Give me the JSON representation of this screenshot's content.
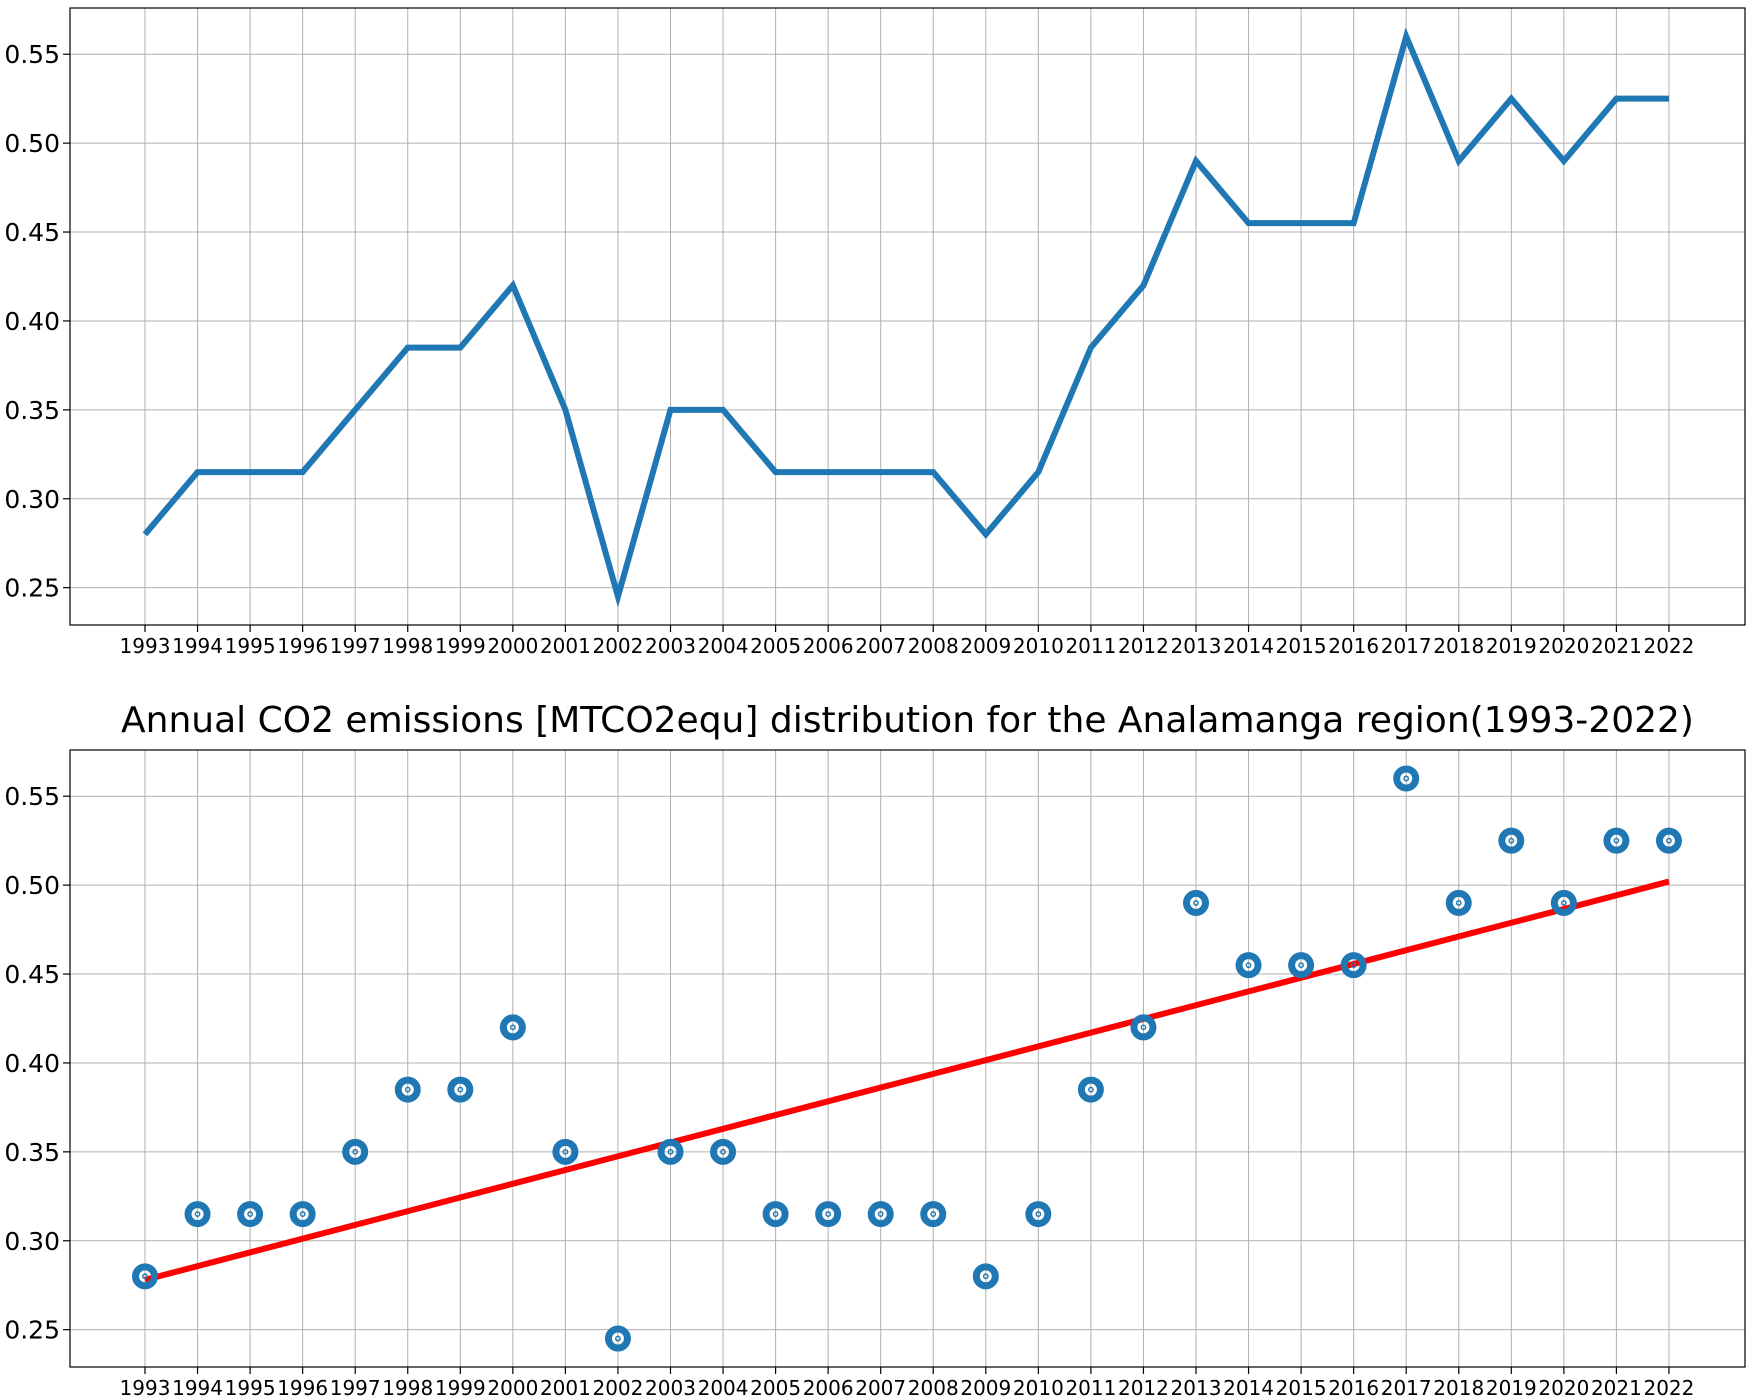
{
  "chart_data": [
    {
      "type": "line",
      "title": "",
      "xlabel": "",
      "ylabel": "",
      "grid": true,
      "x": [
        "1993",
        "1994",
        "1995",
        "1996",
        "1997",
        "1998",
        "1999",
        "2000",
        "2001",
        "2002",
        "2003",
        "2004",
        "2005",
        "2006",
        "2007",
        "2008",
        "2009",
        "2010",
        "2011",
        "2012",
        "2013",
        "2014",
        "2015",
        "2016",
        "2017",
        "2018",
        "2019",
        "2020",
        "2021",
        "2022"
      ],
      "y_ticks": [
        "0.25",
        "0.30",
        "0.35",
        "0.40",
        "0.45",
        "0.50",
        "0.55"
      ],
      "ylim": [
        0.229,
        0.576
      ],
      "series": [
        {
          "values": [
            0.28,
            0.315,
            0.315,
            0.315,
            0.35,
            0.385,
            0.385,
            0.42,
            0.35,
            0.245,
            0.35,
            0.35,
            0.315,
            0.315,
            0.315,
            0.315,
            0.28,
            0.315,
            0.385,
            0.42,
            0.49,
            0.455,
            0.455,
            0.455,
            0.56,
            0.49,
            0.525,
            0.49,
            0.525,
            0.525
          ],
          "color": "#1f77b4"
        }
      ]
    },
    {
      "type": "scatter",
      "title": "Annual CO2 emissions [MTCO2equ] distribution for the Analamanga region(1993-2022)",
      "xlabel": "",
      "ylabel": "",
      "grid": true,
      "x": [
        "1993",
        "1994",
        "1995",
        "1996",
        "1997",
        "1998",
        "1999",
        "2000",
        "2001",
        "2002",
        "2003",
        "2004",
        "2005",
        "2006",
        "2007",
        "2008",
        "2009",
        "2010",
        "2011",
        "2012",
        "2013",
        "2014",
        "2015",
        "2016",
        "2017",
        "2018",
        "2019",
        "2020",
        "2021",
        "2022"
      ],
      "y_ticks": [
        "0.25",
        "0.30",
        "0.35",
        "0.40",
        "0.45",
        "0.50",
        "0.55"
      ],
      "ylim": [
        0.229,
        0.576
      ],
      "series": [
        {
          "values": [
            0.28,
            0.315,
            0.315,
            0.315,
            0.35,
            0.385,
            0.385,
            0.42,
            0.35,
            0.245,
            0.35,
            0.35,
            0.315,
            0.315,
            0.315,
            0.315,
            0.28,
            0.315,
            0.385,
            0.42,
            0.49,
            0.455,
            0.455,
            0.455,
            0.56,
            0.49,
            0.525,
            0.49,
            0.525,
            0.525
          ],
          "color": "#1f77b4",
          "marker": "ring"
        }
      ],
      "trend_line": {
        "x": [
          "1993",
          "2022"
        ],
        "y": [
          0.278,
          0.502
        ],
        "color": "#ff0000"
      }
    }
  ]
}
